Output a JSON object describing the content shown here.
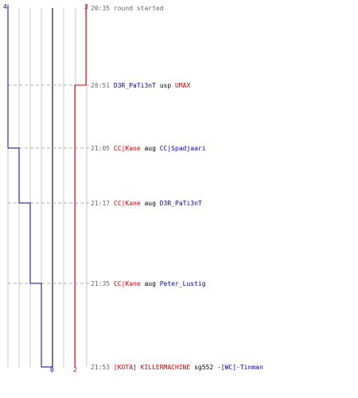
{
  "colors": {
    "blue_team": "#0000aa",
    "red_team": "#cc0000",
    "time": "#666666",
    "verb": "#000000",
    "grid": "#c8c8c8",
    "center": "#777777",
    "dash": "#b0b0b0"
  },
  "chart_data": {
    "type": "line",
    "axis_ticks": {
      "top_left": "4",
      "top_right": "3",
      "bottom_center": "0",
      "bottom_right": "2"
    },
    "series": [
      {
        "team": "blue",
        "x": [
          4,
          4,
          3,
          2,
          1,
          0
        ],
        "at_event": [
          0,
          1,
          2,
          3,
          4,
          5
        ]
      },
      {
        "team": "red",
        "x": [
          3,
          2,
          2,
          2,
          2,
          2
        ],
        "at_event": [
          0,
          1,
          2,
          3,
          4,
          5
        ]
      }
    ]
  },
  "events": [
    {
      "time": "20:35",
      "parts": [
        {
          "text": "round started",
          "color": "time"
        }
      ]
    },
    {
      "time": "20:51",
      "parts": [
        {
          "text": "D3R_PaTi3nT",
          "color": "blue_team"
        },
        {
          "text": " usp ",
          "color": "verb"
        },
        {
          "text": "UMAX",
          "color": "red_team"
        }
      ]
    },
    {
      "time": "21:05",
      "parts": [
        {
          "text": "CC|Kane",
          "color": "red_team"
        },
        {
          "text": " aug ",
          "color": "verb"
        },
        {
          "text": "CC|Spadjaari",
          "color": "blue_team"
        }
      ]
    },
    {
      "time": "21:17",
      "parts": [
        {
          "text": "CC|Kane",
          "color": "red_team"
        },
        {
          "text": " aug ",
          "color": "verb"
        },
        {
          "text": "D3R_PaTi3nT",
          "color": "blue_team"
        }
      ]
    },
    {
      "time": "21:35",
      "parts": [
        {
          "text": "CC|Kane",
          "color": "red_team"
        },
        {
          "text": " aug ",
          "color": "verb"
        },
        {
          "text": "Peter_Lustig",
          "color": "blue_team"
        }
      ]
    },
    {
      "time": "21:53",
      "parts": [
        {
          "text": "[KOTA] KILLERMACHINE",
          "color": "red_team"
        },
        {
          "text": " sg552 ",
          "color": "verb"
        },
        {
          "text": "-[WC]-Tinman",
          "color": "blue_team"
        }
      ]
    }
  ]
}
